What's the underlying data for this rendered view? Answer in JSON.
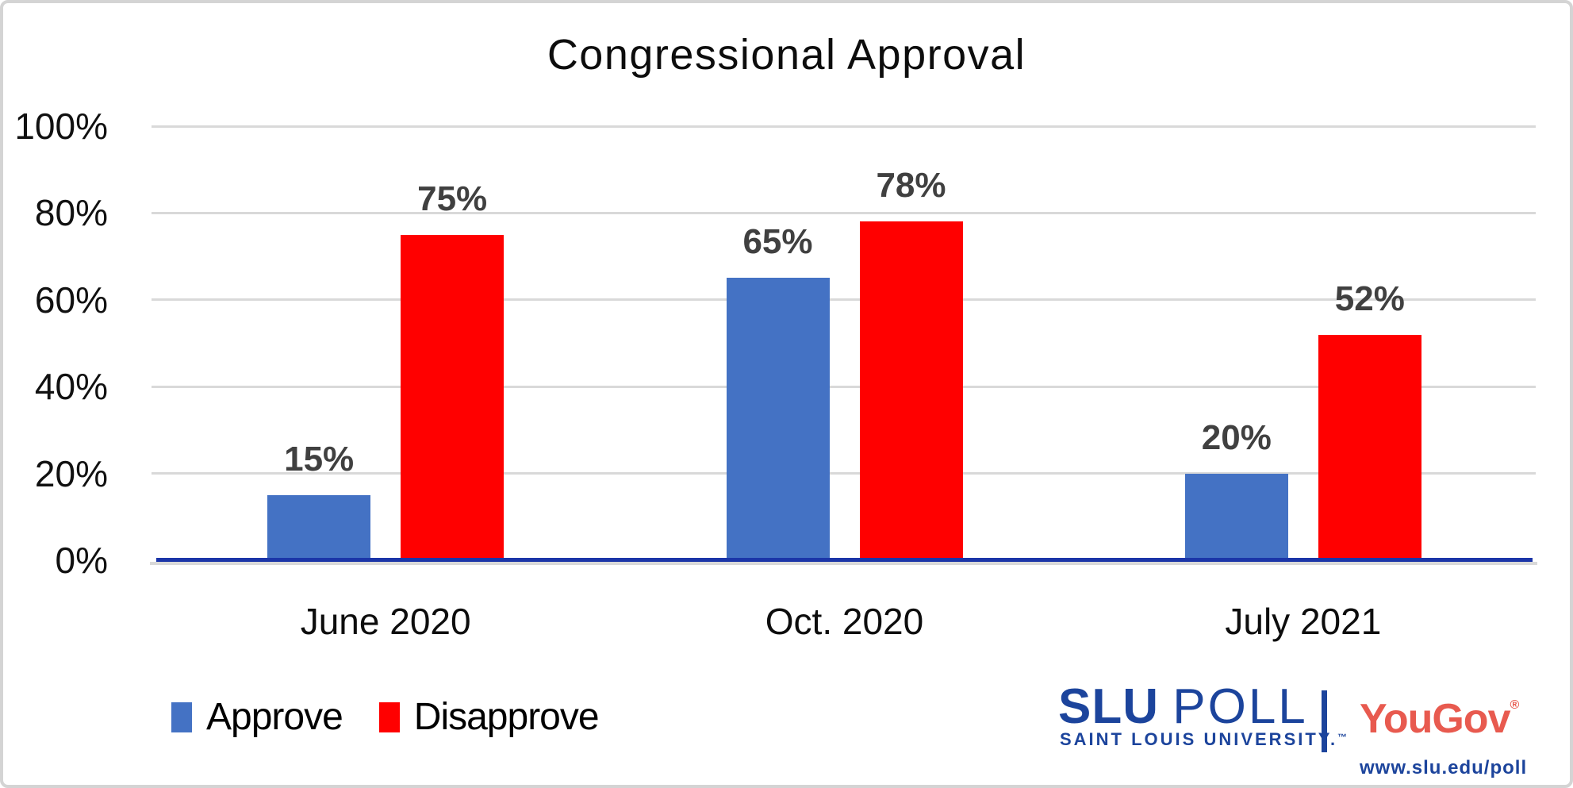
{
  "chart_data": {
    "type": "bar",
    "title": "Congressional Approval",
    "categories": [
      "June 2020",
      "Oct. 2020",
      "July 2021"
    ],
    "series": [
      {
        "name": "Approve",
        "color": "#4472C4",
        "values": [
          15,
          65,
          20
        ]
      },
      {
        "name": "Disapprove",
        "color": "#FF0000",
        "values": [
          75,
          78,
          52
        ]
      }
    ],
    "ylim": [
      0,
      100
    ],
    "ytick_values": [
      0,
      20,
      40,
      60,
      80,
      100
    ],
    "ytick_labels": [
      "0%",
      "20%",
      "40%",
      "60%",
      "80%",
      "100%"
    ],
    "data_label_suffix": "%",
    "grid": true,
    "gridline_color": "#D9D9D9",
    "axis_line_color": "#1B35A8",
    "axis_shadow_color": "#D9D9D9",
    "data_label_color": "#404040",
    "legend_position": "bottom-left"
  },
  "branding": {
    "slu": "SLU",
    "poll": "POLL",
    "university": "SAINT LOUIS UNIVERSITY.",
    "trademark": "™",
    "yougov": "YouGov",
    "registered": "®",
    "url": "www.slu.edu/poll",
    "slu_blue": "#1C449C",
    "yougov_red": "#E85A4F"
  }
}
